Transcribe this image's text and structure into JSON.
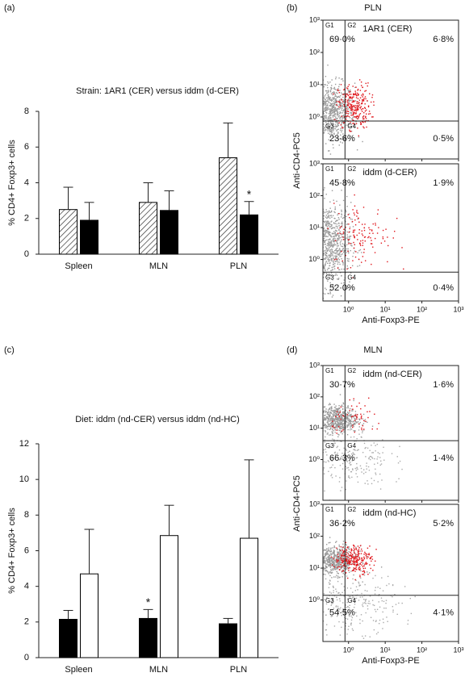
{
  "chart_data": [
    {
      "type": "bar",
      "panel": "(a)",
      "title": "Strain: 1AR1 (CER) versus iddm (d-CER)",
      "y_label": "% CD4+ Foxp3+ cells",
      "categories": [
        "Spleen",
        "MLN",
        "PLN"
      ],
      "series": [
        {
          "color": "#ffffff",
          "pattern": "hatch",
          "values": [
            2.5,
            2.9,
            5.4
          ],
          "errors": [
            1.25,
            1.1,
            1.95
          ]
        },
        {
          "color": "#000000",
          "values": [
            1.9,
            2.45,
            2.2
          ],
          "errors": [
            1.0,
            1.1,
            0.75
          ],
          "markers": [
            null,
            null,
            "*"
          ]
        }
      ],
      "ylim": [
        0,
        8
      ],
      "yticks": [
        0,
        2,
        4,
        6,
        8
      ]
    },
    {
      "type": "flow",
      "panel": "(b)",
      "title": "PLN",
      "x_label": "Anti-Foxp3-PE",
      "y_label": "Anti-CD4-PC5",
      "log_scale": true,
      "xlim": [
        0.2,
        1000
      ],
      "ylim": [
        0.05,
        1000
      ],
      "xticks": [
        {
          "value": 1,
          "label": "10⁰"
        },
        {
          "value": 10,
          "label": "10¹"
        },
        {
          "value": 100,
          "label": "10²"
        },
        {
          "value": 1000,
          "label": "10³"
        }
      ],
      "yticks": [
        {
          "value": 1,
          "label": "10⁰"
        },
        {
          "value": 10,
          "label": "10¹"
        },
        {
          "value": 100,
          "label": "10²"
        },
        {
          "value": 1000,
          "label": "10³"
        }
      ],
      "plots": [
        {
          "sample": "1AR1 (CER)",
          "gate_x": 0.8,
          "gate_y": 0.75,
          "quadrants": [
            {
              "gate": "G1",
              "value": 69.0,
              "label": "69·0%"
            },
            {
              "gate": "G2",
              "value": 6.8,
              "label": "6·8%"
            },
            {
              "gate": "G3",
              "value": 23.6,
              "label": "23·6%"
            },
            {
              "gate": "G4",
              "value": 0.5,
              "label": "0·5%"
            }
          ]
        },
        {
          "sample": "iddm (d-CER)",
          "gate_x": 0.8,
          "gate_y": 0.4,
          "quadrants": [
            {
              "gate": "G1",
              "value": 45.8,
              "label": "45·8%"
            },
            {
              "gate": "G2",
              "value": 1.9,
              "label": "1·9%"
            },
            {
              "gate": "G3",
              "value": 52.0,
              "label": "52·0%"
            },
            {
              "gate": "G4",
              "value": 0.4,
              "label": "0·4%"
            }
          ]
        }
      ]
    },
    {
      "type": "bar",
      "panel": "(c)",
      "title": "Diet: iddm (nd-CER) versus iddm (nd-HC)",
      "y_label": "% CD4+ Foxp3+ cells",
      "categories": [
        "Spleen",
        "MLN",
        "PLN"
      ],
      "series": [
        {
          "color": "#000000",
          "values": [
            2.15,
            2.2,
            1.9
          ],
          "errors": [
            0.5,
            0.5,
            0.3
          ],
          "markers": [
            null,
            "*",
            null
          ]
        },
        {
          "color": "#ffffff",
          "values": [
            4.7,
            6.85,
            6.7
          ],
          "errors": [
            2.5,
            1.7,
            4.4
          ]
        }
      ],
      "ylim": [
        0,
        12
      ],
      "yticks": [
        0,
        2,
        4,
        6,
        8,
        10,
        12
      ]
    },
    {
      "type": "flow",
      "panel": "(d)",
      "title": "MLN",
      "x_label": "Anti-Foxp3-PE",
      "y_label": "Anti-CD4-PC5",
      "log_scale": true,
      "xlim": [
        0.2,
        1000
      ],
      "ylim": [
        0.05,
        1000
      ],
      "xticks": [
        {
          "value": 1,
          "label": "10⁰"
        },
        {
          "value": 10,
          "label": "10¹"
        },
        {
          "value": 100,
          "label": "10²"
        },
        {
          "value": 1000,
          "label": "10³"
        }
      ],
      "yticks": [
        {
          "value": 1,
          "label": "10⁰"
        },
        {
          "value": 10,
          "label": "10¹"
        },
        {
          "value": 100,
          "label": "10²"
        },
        {
          "value": 1000,
          "label": "10³"
        }
      ],
      "plots": [
        {
          "sample": "iddm (nd-CER)",
          "gate_x": 0.8,
          "gate_y": 4,
          "quadrants": [
            {
              "gate": "G1",
              "value": 30.7,
              "label": "30·7%"
            },
            {
              "gate": "G2",
              "value": 1.6,
              "label": "1·6%"
            },
            {
              "gate": "G3",
              "value": 66.3,
              "label": "66·3%"
            },
            {
              "gate": "G4",
              "value": 1.4,
              "label": "1·4%"
            }
          ]
        },
        {
          "sample": "iddm (nd-HC)",
          "gate_x": 0.8,
          "gate_y": 1.4,
          "quadrants": [
            {
              "gate": "G1",
              "value": 36.2,
              "label": "36·2%"
            },
            {
              "gate": "G2",
              "value": 5.2,
              "label": "5·2%"
            },
            {
              "gate": "G3",
              "value": 54.5,
              "label": "54·5%"
            },
            {
              "gate": "G4",
              "value": 4.1,
              "label": "4·1%"
            }
          ]
        }
      ]
    }
  ]
}
